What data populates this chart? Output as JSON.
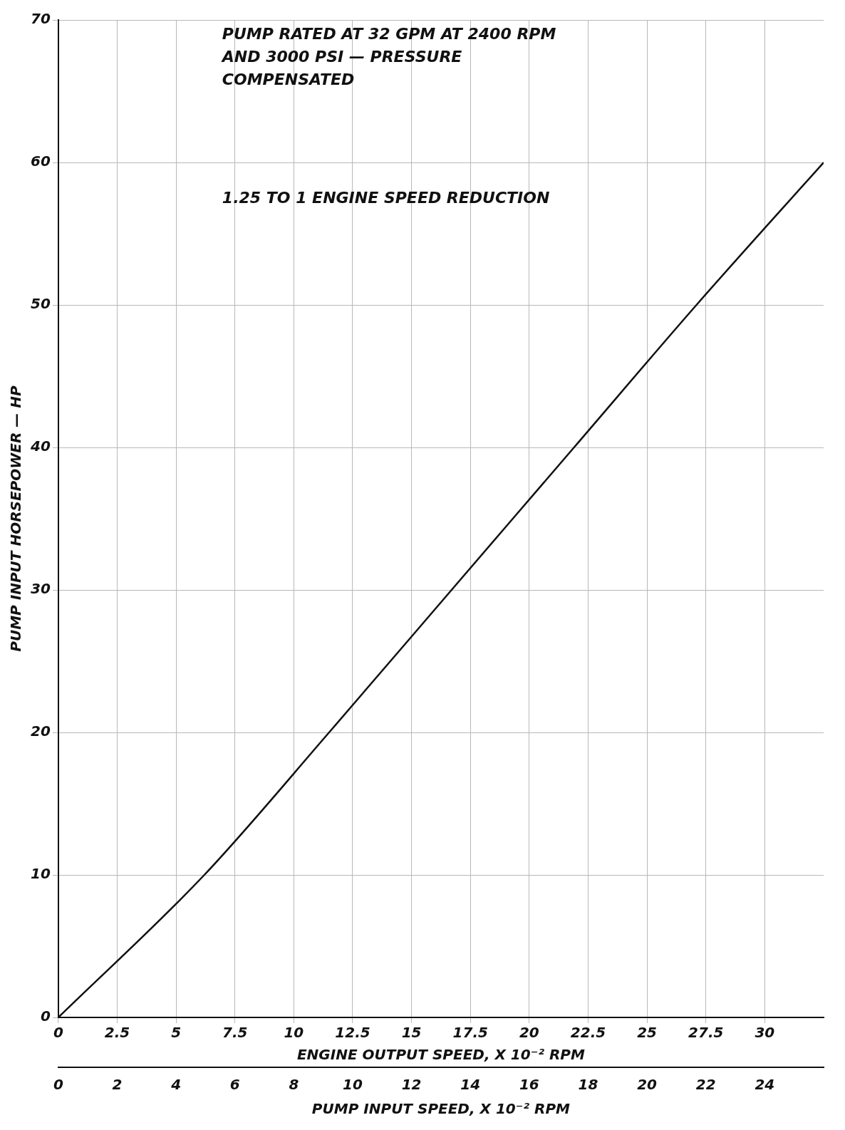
{
  "chart_data": {
    "type": "line",
    "xlabel": "ENGINE OUTPUT SPEED, X 10⁻² RPM",
    "x2label": "PUMP INPUT SPEED, X 10⁻² RPM",
    "ylabel": "PUMP INPUT HORSEPOWER — HP",
    "annotations": [
      "PUMP RATED AT 32 GPM AT 2400 RPM AND 3000 PSI — PRESSURE COMPENSATED",
      "1.25 TO 1 ENGINE SPEED REDUCTION"
    ],
    "series": [
      {
        "color": "#111111",
        "x": [
          0,
          6.2,
          11.5,
          16.7,
          21.9,
          27.1,
          32.5
        ],
        "values": [
          0,
          10,
          20,
          30,
          40,
          50,
          60
        ]
      }
    ],
    "xlim": [
      0,
      32.5
    ],
    "xticks": [
      0,
      2.5,
      5,
      7.5,
      10,
      12.5,
      15,
      17.5,
      20,
      22.5,
      25,
      27.5,
      30
    ],
    "x2lim": [
      0,
      26
    ],
    "x2ticks": [
      0,
      2,
      4,
      6,
      8,
      10,
      12,
      14,
      16,
      18,
      20,
      22,
      24
    ],
    "ylim": [
      0,
      70
    ],
    "yticks": [
      0,
      10,
      20,
      30,
      40,
      50,
      60,
      70
    ],
    "grid": true,
    "marker": "none",
    "line_style": "solid"
  }
}
